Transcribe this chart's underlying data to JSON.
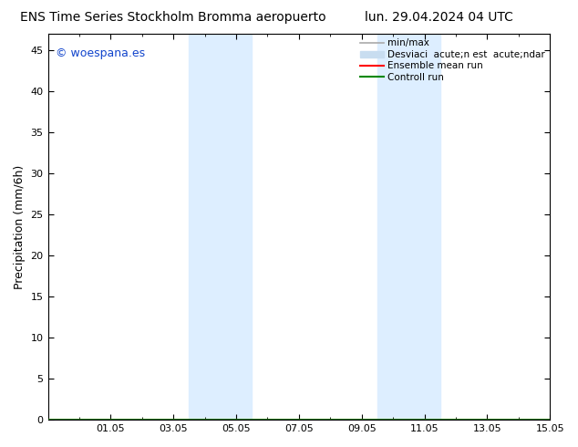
{
  "title_left": "ENS Time Series Stockholm Bromma aeropuerto",
  "title_right": "lun. 29.04.2024 04 UTC",
  "ylabel": "Precipitation (mm/6h)",
  "watermark": "© woespana.es",
  "ylim": [
    0,
    47
  ],
  "yticks": [
    0,
    5,
    10,
    15,
    20,
    25,
    30,
    35,
    40,
    45
  ],
  "xtick_labels": [
    "01.05",
    "03.05",
    "05.05",
    "07.05",
    "09.05",
    "11.05",
    "13.05",
    "15.05"
  ],
  "xtick_positions": [
    2,
    4,
    6,
    8,
    10,
    12,
    14,
    16
  ],
  "xlim": [
    0,
    16
  ],
  "shaded_regions": [
    {
      "start": 4.5,
      "end": 6.5
    },
    {
      "start": 10.5,
      "end": 12.5
    }
  ],
  "shaded_color": "#ddeeff",
  "background_color": "#ffffff",
  "legend_label_minmax": "min/max",
  "legend_label_desv": "Desviaci  acute;n est  acute;ndar",
  "legend_label_ensemble": "Ensemble mean run",
  "legend_label_control": "Controll run",
  "color_minmax": "#aaaaaa",
  "color_desv": "#c8ddf0",
  "color_ensemble": "#ff0000",
  "color_control": "#008800",
  "title_fontsize": 10,
  "label_fontsize": 9,
  "tick_fontsize": 8,
  "legend_fontsize": 7.5,
  "watermark_color": "#1144cc",
  "watermark_fontsize": 9
}
